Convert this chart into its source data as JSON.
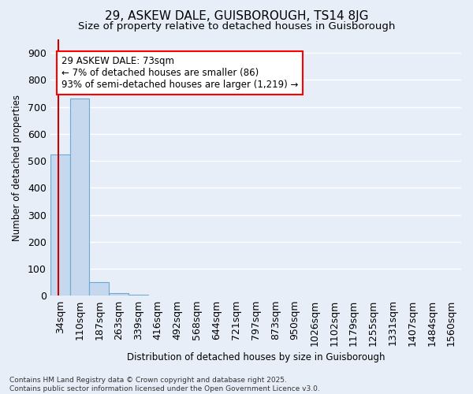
{
  "title1": "29, ASKEW DALE, GUISBOROUGH, TS14 8JG",
  "title2": "Size of property relative to detached houses in Guisborough",
  "xlabel": "Distribution of detached houses by size in Guisborough",
  "ylabel": "Number of detached properties",
  "categories": [
    "34sqm",
    "110sqm",
    "187sqm",
    "263sqm",
    "339sqm",
    "416sqm",
    "492sqm",
    "568sqm",
    "644sqm",
    "721sqm",
    "797sqm",
    "873sqm",
    "950sqm",
    "1026sqm",
    "1102sqm",
    "1179sqm",
    "1255sqm",
    "1331sqm",
    "1407sqm",
    "1484sqm",
    "1560sqm"
  ],
  "values": [
    525,
    730,
    50,
    10,
    5,
    0,
    0,
    0,
    0,
    0,
    0,
    0,
    0,
    0,
    0,
    0,
    0,
    0,
    0,
    0,
    0
  ],
  "bar_color": "#c5d8ed",
  "bar_edge_color": "#6aaad4",
  "annotation_line1": "29 ASKEW DALE: 73sqm",
  "annotation_line2": "← 7% of detached houses are smaller (86)",
  "annotation_line3": "93% of semi-detached houses are larger (1,219) →",
  "ann_box_facecolor": "white",
  "ann_box_edgecolor": "red",
  "vline_color": "#cc0000",
  "background_color": "#e8eef8",
  "grid_color": "white",
  "ylim_max": 950,
  "yticks": [
    0,
    100,
    200,
    300,
    400,
    500,
    600,
    700,
    800,
    900
  ],
  "footer_line1": "Contains HM Land Registry data © Crown copyright and database right 2025.",
  "footer_line2": "Contains public sector information licensed under the Open Government Licence v3.0."
}
